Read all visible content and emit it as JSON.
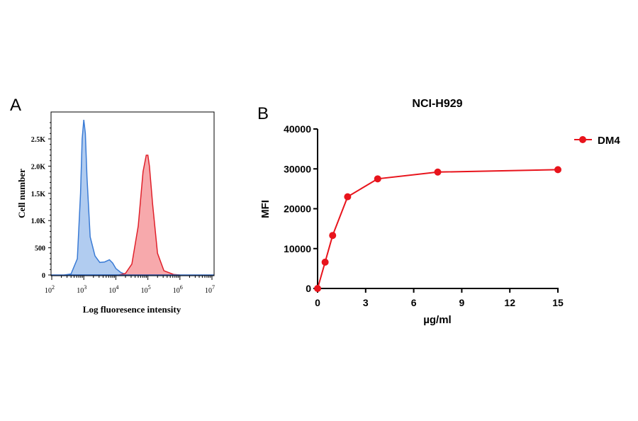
{
  "chart_data": [
    {
      "panel_label": "A",
      "type": "area",
      "xlabel": "Log fluoresence intensity",
      "ylabel": "Cell number",
      "x_scale": "log",
      "xlim": [
        100,
        15000000
      ],
      "ylim": [
        0,
        2900
      ],
      "x_ticks": [
        {
          "base": "10",
          "exp": "2"
        },
        {
          "base": "10",
          "exp": "3"
        },
        {
          "base": "10",
          "exp": "4"
        },
        {
          "base": "10",
          "exp": "5"
        },
        {
          "base": "10",
          "exp": "6"
        },
        {
          "base": "10",
          "exp": "7"
        }
      ],
      "y_ticks": [
        {
          "value": 0,
          "label": "0"
        },
        {
          "value": 500,
          "label": "500"
        },
        {
          "value": 1000,
          "label": "1.0K"
        },
        {
          "value": 1500,
          "label": "1.5K"
        },
        {
          "value": 2000,
          "label": "2.0K"
        },
        {
          "value": 2500,
          "label": "2.5K"
        }
      ],
      "series": [
        {
          "color": "#3a7bd5",
          "fill": "#a9c6ee",
          "points": [
            [
              250,
              0
            ],
            [
              400,
              20
            ],
            [
              630,
              300
            ],
            [
              790,
              1500
            ],
            [
              890,
              2500
            ],
            [
              1000,
              2850
            ],
            [
              1120,
              2600
            ],
            [
              1260,
              1800
            ],
            [
              1580,
              700
            ],
            [
              2240,
              350
            ],
            [
              3160,
              230
            ],
            [
              4470,
              240
            ],
            [
              6310,
              280
            ],
            [
              7940,
              220
            ],
            [
              10000,
              120
            ],
            [
              14100,
              50
            ],
            [
              20000,
              10
            ],
            [
              31600,
              0
            ]
          ]
        },
        {
          "color": "#e0202a",
          "fill": "#f6a0a3",
          "points": [
            [
              12600,
              0
            ],
            [
              20000,
              30
            ],
            [
              31600,
              200
            ],
            [
              50100,
              900
            ],
            [
              70800,
              1900
            ],
            [
              89100,
              2200
            ],
            [
              100000,
              2200
            ],
            [
              112000,
              2000
            ],
            [
              141000,
              1300
            ],
            [
              200000,
              400
            ],
            [
              316000,
              80
            ],
            [
              631000,
              10
            ],
            [
              1000000,
              0
            ]
          ]
        }
      ]
    },
    {
      "panel_label": "B",
      "type": "line",
      "title": "NCI-H929",
      "xlabel": "µg/ml",
      "ylabel": "MFI",
      "xlim": [
        0,
        15
      ],
      "ylim": [
        0,
        40000
      ],
      "x_ticks": [
        0,
        3,
        6,
        9,
        12,
        15
      ],
      "y_ticks": [
        0,
        10000,
        20000,
        30000,
        40000
      ],
      "legend_position": "top-right",
      "series": [
        {
          "name": "DM4",
          "color": "#e8141c",
          "x": [
            0,
            0.47,
            0.94,
            1.875,
            3.75,
            7.5,
            15
          ],
          "y": [
            0,
            6600,
            13300,
            23000,
            27500,
            29200,
            29800
          ]
        }
      ]
    }
  ]
}
